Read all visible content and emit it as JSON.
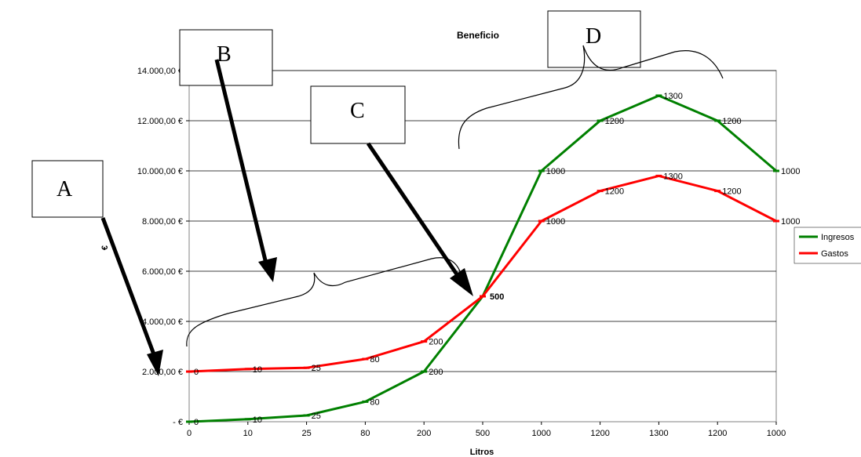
{
  "chart_data": {
    "type": "line",
    "title": "Beneficio",
    "xlabel": "Litros",
    "ylabel": "€",
    "categories": [
      "0",
      "10",
      "25",
      "80",
      "200",
      "500",
      "1000",
      "1200",
      "1300",
      "1200",
      "1000"
    ],
    "ylim": [
      0,
      14000
    ],
    "yticks": [
      {
        "value": 0,
        "label": "-   €"
      },
      {
        "value": 2000,
        "label": "2.000,00 €"
      },
      {
        "value": 4000,
        "label": "4.000,00 €"
      },
      {
        "value": 6000,
        "label": "6.000,00 €"
      },
      {
        "value": 8000,
        "label": "8.000,00 €"
      },
      {
        "value": 10000,
        "label": "10.000,00 €"
      },
      {
        "value": 12000,
        "label": "12.000,00 €"
      },
      {
        "value": 14000,
        "label": "14.000,00 €"
      }
    ],
    "grid": true,
    "legend_position": "right",
    "series": [
      {
        "name": "Ingresos",
        "color": "#008000",
        "values": [
          0,
          100,
          250,
          800,
          2000,
          5000,
          10000,
          12000,
          13000,
          12000,
          10000
        ],
        "point_labels": [
          "0",
          "10",
          "25",
          "80",
          "200",
          "500",
          "1000",
          "1200",
          "1300",
          "1200",
          "1000"
        ]
      },
      {
        "name": "Gastos",
        "color": "#ff0000",
        "values": [
          2000,
          2100,
          2150,
          2500,
          3200,
          5000,
          8000,
          9200,
          9800,
          9200,
          8000
        ],
        "point_labels": [
          "0",
          "10",
          "25",
          "80",
          "200",
          "500",
          "1000",
          "1200",
          "1300",
          "1200",
          "1000"
        ]
      }
    ],
    "annotations": [
      {
        "id": "A",
        "label": "A"
      },
      {
        "id": "B",
        "label": "B"
      },
      {
        "id": "C",
        "label": "C"
      },
      {
        "id": "D",
        "label": "D"
      }
    ]
  }
}
